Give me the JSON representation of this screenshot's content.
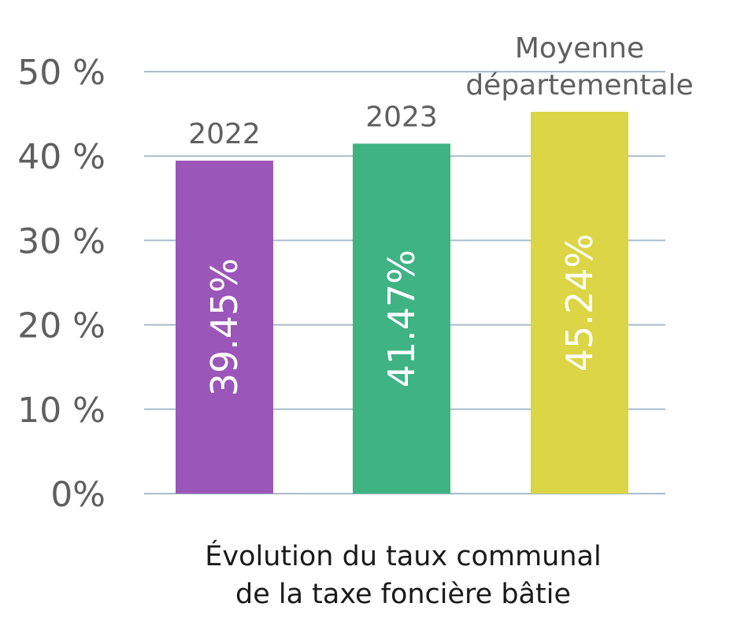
{
  "chart_data": {
    "type": "bar",
    "categories": [
      "2022",
      "2023",
      "Moyenne départementale"
    ],
    "category_label_lines": [
      [
        "2022"
      ],
      [
        "2023"
      ],
      [
        "Moyenne",
        "départementale"
      ]
    ],
    "values": [
      39.45,
      41.47,
      45.24
    ],
    "value_labels": [
      "39.45%",
      "41.47%",
      "45.24%"
    ],
    "bar_colors": [
      "#9b56b9",
      "#3fb383",
      "#dcd545"
    ],
    "title_lines": [
      "Évolution du taux communal",
      "de la taxe foncière bâtie"
    ],
    "xlabel": "",
    "ylabel": "",
    "ylim": [
      0,
      50
    ],
    "yticks": [
      0,
      10,
      20,
      30,
      40,
      50
    ],
    "ytick_labels": [
      "0%",
      "10 %",
      "20 %",
      "30 %",
      "40 %",
      "50 %"
    ],
    "grid": true,
    "legend": "none"
  }
}
